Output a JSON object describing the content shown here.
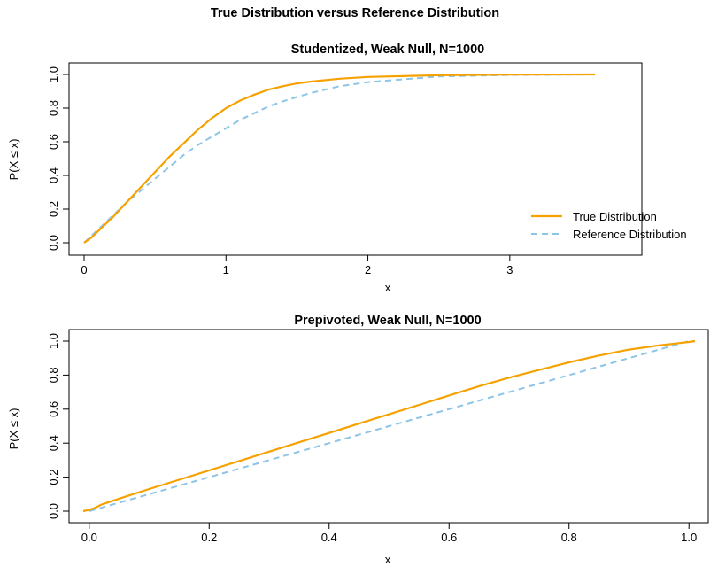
{
  "figure": {
    "title": "True Distribution versus Reference Distribution"
  },
  "colors": {
    "true": "#F5A200",
    "reference": "#8EC5E6",
    "axis": "#000000"
  },
  "chart_data": [
    {
      "type": "line",
      "title": "Studentized, Weak Null, N=1000",
      "xlabel": "x",
      "ylabel": "P(X ≤ x)",
      "xlim": [
        0,
        3.6
      ],
      "ylim": [
        0,
        1
      ],
      "xticks": [
        0,
        1,
        2,
        3
      ],
      "xtick_labels": [
        "0",
        "1",
        "2",
        "3"
      ],
      "yticks": [
        0,
        0.2,
        0.4,
        0.6,
        0.8,
        1.0
      ],
      "ytick_labels": [
        "0.0",
        "0.2",
        "0.4",
        "0.6",
        "0.8",
        "1.0"
      ],
      "legend": {
        "position": "right",
        "entries": [
          "True Distribution",
          "Reference Distribution"
        ]
      },
      "series": [
        {
          "name": "True Distribution",
          "style": "solid",
          "color": "#F5A200",
          "x": [
            0,
            0.05,
            0.1,
            0.2,
            0.3,
            0.4,
            0.5,
            0.6,
            0.7,
            0.8,
            0.9,
            1.0,
            1.1,
            1.2,
            1.3,
            1.4,
            1.5,
            1.6,
            1.8,
            2.0,
            2.5,
            3.0,
            3.6
          ],
          "y": [
            0,
            0.03,
            0.07,
            0.15,
            0.24,
            0.33,
            0.42,
            0.51,
            0.59,
            0.67,
            0.74,
            0.8,
            0.845,
            0.88,
            0.91,
            0.93,
            0.947,
            0.958,
            0.975,
            0.985,
            0.995,
            0.999,
            1.0
          ]
        },
        {
          "name": "Reference Distribution",
          "style": "dashed",
          "color": "#8EC5E6",
          "x": [
            0,
            0.1,
            0.2,
            0.3,
            0.4,
            0.5,
            0.6,
            0.7,
            0.8,
            0.9,
            1.0,
            1.1,
            1.2,
            1.3,
            1.4,
            1.5,
            1.6,
            1.8,
            2.0,
            2.5,
            3.0,
            3.6
          ],
          "y": [
            0,
            0.08,
            0.16,
            0.24,
            0.31,
            0.38,
            0.45,
            0.52,
            0.58,
            0.63,
            0.68,
            0.73,
            0.77,
            0.81,
            0.84,
            0.866,
            0.89,
            0.93,
            0.955,
            0.988,
            0.997,
            1.0
          ]
        }
      ]
    },
    {
      "type": "line",
      "title": "Prepivoted, Weak Null, N=1000",
      "xlabel": "x",
      "ylabel": "P(X ≤ x)",
      "xlim": [
        -0.01,
        1.01
      ],
      "ylim": [
        0,
        1
      ],
      "xticks": [
        0,
        0.2,
        0.4,
        0.6,
        0.8,
        1.0
      ],
      "xtick_labels": [
        "0.0",
        "0.2",
        "0.4",
        "0.6",
        "0.8",
        "1.0"
      ],
      "yticks": [
        0,
        0.2,
        0.4,
        0.6,
        0.8,
        1.0
      ],
      "ytick_labels": [
        "0.0",
        "0.2",
        "0.4",
        "0.6",
        "0.8",
        "1.0"
      ],
      "series": [
        {
          "name": "True Distribution",
          "style": "solid",
          "color": "#F5A200",
          "x": [
            -0.01,
            0.0,
            0.01,
            0.02,
            0.04,
            0.06,
            0.1,
            0.15,
            0.2,
            0.25,
            0.3,
            0.35,
            0.4,
            0.45,
            0.5,
            0.55,
            0.6,
            0.65,
            0.7,
            0.75,
            0.8,
            0.85,
            0.9,
            0.95,
            1.0,
            1.01
          ],
          "y": [
            0,
            0.008,
            0.02,
            0.038,
            0.062,
            0.085,
            0.13,
            0.185,
            0.24,
            0.295,
            0.35,
            0.405,
            0.46,
            0.515,
            0.57,
            0.625,
            0.68,
            0.735,
            0.785,
            0.83,
            0.875,
            0.915,
            0.95,
            0.975,
            0.995,
            1.0
          ]
        },
        {
          "name": "Reference Distribution",
          "style": "dashed",
          "color": "#8EC5E6",
          "x": [
            0.0,
            0.02,
            0.04,
            0.1,
            0.2,
            0.3,
            0.4,
            0.5,
            0.6,
            0.7,
            0.8,
            0.9,
            1.0,
            1.01
          ],
          "y": [
            0.0,
            0.02,
            0.04,
            0.1,
            0.2,
            0.3,
            0.4,
            0.5,
            0.6,
            0.7,
            0.8,
            0.9,
            1.0,
            1.0
          ]
        }
      ]
    }
  ]
}
